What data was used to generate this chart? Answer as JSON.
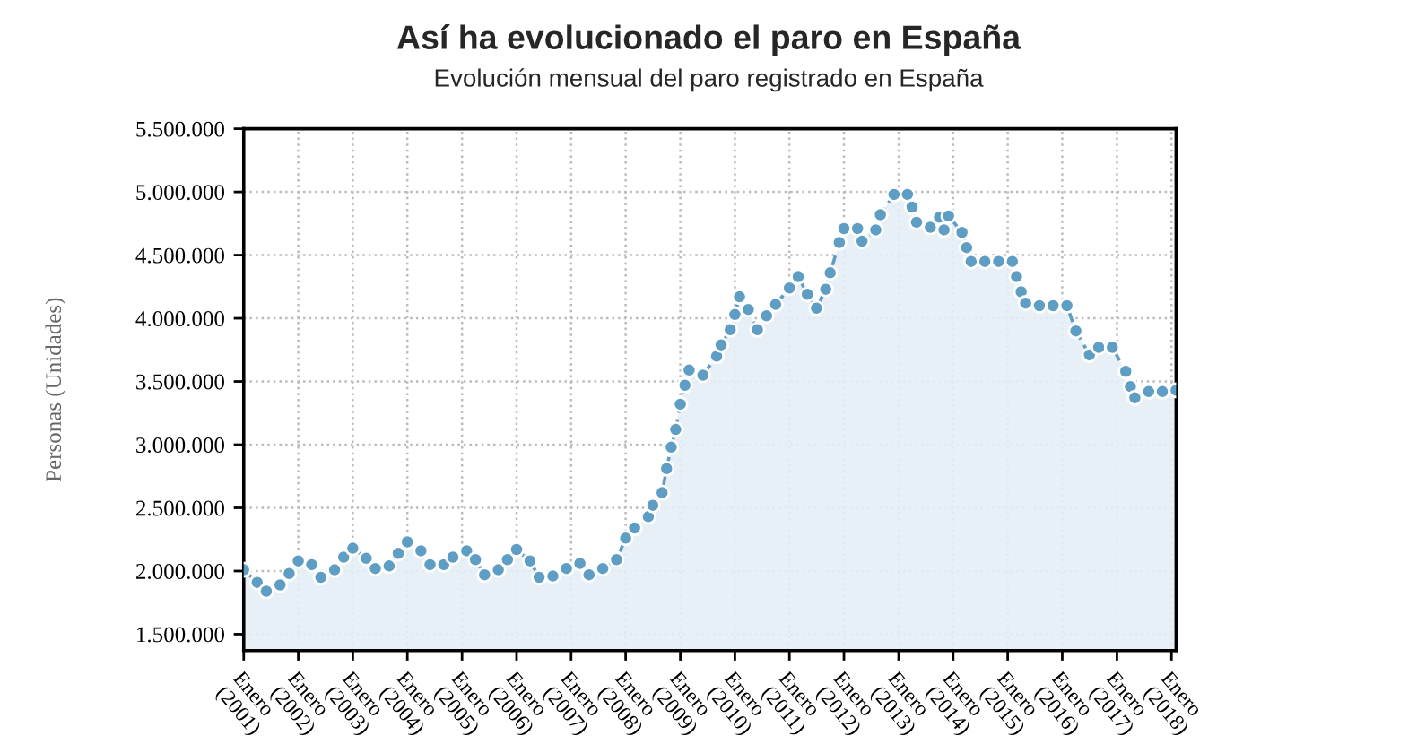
{
  "chart_data": {
    "type": "area",
    "title": "Así ha evolucionado el paro en España",
    "subtitle": "Evolución mensual del paro registrado en España",
    "ylabel": "Personas (Unidades)",
    "x": [
      "2001-01",
      "2001-04",
      "2001-06",
      "2001-09",
      "2001-11",
      "2002-01",
      "2002-04",
      "2002-06",
      "2002-09",
      "2002-11",
      "2003-01",
      "2003-04",
      "2003-06",
      "2003-09",
      "2003-11",
      "2004-01",
      "2004-04",
      "2004-06",
      "2004-09",
      "2004-11",
      "2005-02",
      "2005-04",
      "2005-06",
      "2005-09",
      "2005-11",
      "2006-01",
      "2006-04",
      "2006-06",
      "2006-09",
      "2006-12",
      "2007-03",
      "2007-05",
      "2007-08",
      "2007-11",
      "2008-01",
      "2008-03",
      "2008-06",
      "2008-07",
      "2008-09",
      "2008-10",
      "2008-11",
      "2008-12",
      "2009-01",
      "2009-02",
      "2009-03",
      "2009-06",
      "2009-09",
      "2009-10",
      "2009-12",
      "2010-01",
      "2010-02",
      "2010-04",
      "2010-06",
      "2010-08",
      "2010-10",
      "2011-01",
      "2011-03",
      "2011-05",
      "2011-07",
      "2011-09",
      "2011-10",
      "2011-12",
      "2012-01",
      "2012-04",
      "2012-05",
      "2012-08",
      "2012-09",
      "2012-12",
      "2013-03",
      "2013-04",
      "2013-05",
      "2013-08",
      "2013-10",
      "2013-11",
      "2013-12",
      "2014-03",
      "2014-04",
      "2014-05",
      "2014-08",
      "2014-11",
      "2015-02",
      "2015-03",
      "2015-04",
      "2015-05",
      "2015-08",
      "2015-11",
      "2016-02",
      "2016-04",
      "2016-07",
      "2016-09",
      "2016-12",
      "2017-03",
      "2017-04",
      "2017-05",
      "2017-08",
      "2017-11",
      "2018-02"
    ],
    "series": [
      {
        "color": "#5f9ec4",
        "values": [
          2010000,
          1910000,
          1840000,
          1890000,
          1980000,
          2080000,
          2050000,
          1950000,
          2010000,
          2110000,
          2180000,
          2100000,
          2020000,
          2040000,
          2140000,
          2230000,
          2160000,
          2050000,
          2050000,
          2110000,
          2160000,
          2090000,
          1970000,
          2010000,
          2090000,
          2170000,
          2080000,
          1950000,
          1960000,
          2020000,
          2060000,
          1970000,
          2020000,
          2090000,
          2260000,
          2340000,
          2430000,
          2520000,
          2620000,
          2810000,
          2980000,
          3120000,
          3320000,
          3470000,
          3590000,
          3550000,
          3700000,
          3790000,
          3910000,
          4030000,
          4170000,
          4070000,
          3910000,
          4020000,
          4110000,
          4240000,
          4330000,
          4190000,
          4080000,
          4230000,
          4360000,
          4600000,
          4710000,
          4710000,
          4610000,
          4700000,
          4820000,
          4980000,
          4980000,
          4880000,
          4760000,
          4720000,
          4800000,
          4700000,
          4810000,
          4680000,
          4560000,
          4450000,
          4450000,
          4450000,
          4450000,
          4330000,
          4210000,
          4120000,
          4100000,
          4100000,
          4100000,
          3900000,
          3710000,
          3770000,
          3770000,
          3580000,
          3460000,
          3370000,
          3420000,
          3420000,
          3430000
        ]
      }
    ],
    "xlim": [
      "2001-01",
      "2018-02"
    ],
    "xticks": [
      {
        "value": "2001-01",
        "label": "Enero\n(2001)"
      },
      {
        "value": "2002-01",
        "label": "Enero\n(2002)"
      },
      {
        "value": "2003-01",
        "label": "Enero\n(2003)"
      },
      {
        "value": "2004-01",
        "label": "Enero\n(2004)"
      },
      {
        "value": "2005-01",
        "label": "Enero\n(2005)"
      },
      {
        "value": "2006-01",
        "label": "Enero\n(2006)"
      },
      {
        "value": "2007-01",
        "label": "Enero\n(2007)"
      },
      {
        "value": "2008-01",
        "label": "Enero\n(2008)"
      },
      {
        "value": "2009-01",
        "label": "Enero\n(2009)"
      },
      {
        "value": "2010-01",
        "label": "Enero\n(2010)"
      },
      {
        "value": "2011-01",
        "label": "Enero\n(2011)"
      },
      {
        "value": "2012-01",
        "label": "Enero\n(2012)"
      },
      {
        "value": "2013-01",
        "label": "Enero\n(2013)"
      },
      {
        "value": "2014-01",
        "label": "Enero\n(2014)"
      },
      {
        "value": "2015-01",
        "label": "Enero\n(2015)"
      },
      {
        "value": "2016-01",
        "label": "Enero\n(2016)"
      },
      {
        "value": "2017-01",
        "label": "Enero\n(2017)"
      },
      {
        "value": "2018-01",
        "label": "Enero\n(2018)"
      }
    ],
    "ylim": [
      1370000,
      5500000
    ],
    "yticks": [
      {
        "value": 1500000,
        "label": "1.500.000"
      },
      {
        "value": 2000000,
        "label": "2.000.000"
      },
      {
        "value": 2500000,
        "label": "2.500.000"
      },
      {
        "value": 3000000,
        "label": "3.000.000"
      },
      {
        "value": 3500000,
        "label": "3.500.000"
      },
      {
        "value": 4000000,
        "label": "4.000.000"
      },
      {
        "value": 4500000,
        "label": "4.500.000"
      },
      {
        "value": 5000000,
        "label": "5.000.000"
      },
      {
        "value": 5500000,
        "label": "5.500.000"
      }
    ],
    "grid": true,
    "marker": "circle",
    "line_style": "dashed"
  }
}
